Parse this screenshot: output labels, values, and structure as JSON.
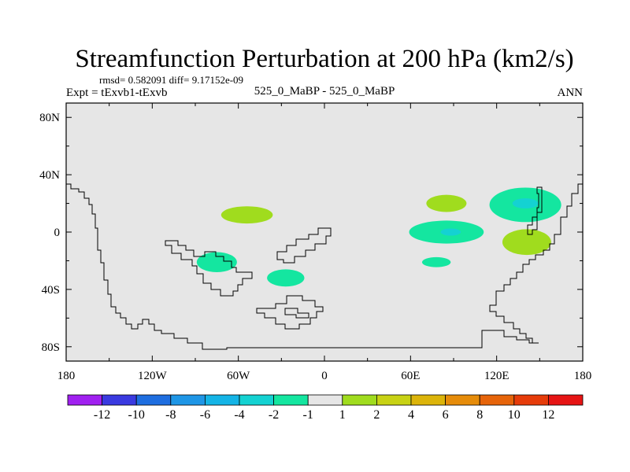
{
  "chart_data": {
    "type": "contour-map",
    "title": "Streamfunction Perturbation at 200 hPa (km2/s)",
    "stats": "rmsd= 0.582091 diff= 9.17152e-09",
    "experiment": "Expt = tExvb1-tExvb",
    "case": "525_0_MaBP - 525_0_MaBP",
    "season": "ANN",
    "x_ticks": [
      "180",
      "120W",
      "60W",
      "0",
      "60E",
      "120E",
      "180"
    ],
    "x_values": [
      -180,
      -120,
      -60,
      0,
      60,
      120,
      180
    ],
    "y_ticks": [
      "80N",
      "40N",
      "0",
      "40S",
      "80S"
    ],
    "y_values": [
      80,
      40,
      0,
      -40,
      -80
    ],
    "xlim": [
      -180,
      180
    ],
    "ylim": [
      -90,
      90
    ],
    "colorbar_labels": [
      "-12",
      "-10",
      "-8",
      "-6",
      "-4",
      "-2",
      "-1",
      "1",
      "2",
      "4",
      "6",
      "8",
      "10",
      "12"
    ],
    "colorbar_colors": [
      "#a020f0",
      "#3a3ae0",
      "#1e6ee0",
      "#1e96e6",
      "#14b4e6",
      "#14d2d2",
      "#14e6a0",
      "#e6e6e6",
      "#a0dc1e",
      "#c8d214",
      "#dcb40a",
      "#e68c0a",
      "#e6640a",
      "#e63c0a",
      "#e61414"
    ],
    "contour_features": [
      {
        "lon": -54,
        "lat": 12,
        "rlon": 18,
        "rlat": 6,
        "level": "1 to 2",
        "color": "#a0dc1e"
      },
      {
        "lon": -75,
        "lat": -21,
        "rlon": 14,
        "rlat": 7,
        "level": "-2 to -1",
        "color": "#14e6a0"
      },
      {
        "lon": -27,
        "lat": -32,
        "rlon": 13,
        "rlat": 6,
        "level": "-2 to -1",
        "color": "#14e6a0"
      },
      {
        "lon": 85,
        "lat": 20,
        "rlon": 14,
        "rlat": 6,
        "level": "1 to 2",
        "color": "#a0dc1e"
      },
      {
        "lon": 85,
        "lat": 0,
        "rlon": 26,
        "rlat": 8,
        "level": "-2 to -1",
        "color": "#14e6a0"
      },
      {
        "lon": 88,
        "lat": 0,
        "rlon": 7,
        "rlat": 2.5,
        "level": "-4 to -2",
        "color": "#14d2d2"
      },
      {
        "lon": 78,
        "lat": -21,
        "rlon": 10,
        "rlat": 3.5,
        "level": "-2 to -1",
        "color": "#14e6a0"
      },
      {
        "lon": 140,
        "lat": 19,
        "rlon": 25,
        "rlat": 12,
        "level": "-2 to -1",
        "color": "#14e6a0"
      },
      {
        "lon": 140,
        "lat": 20,
        "rlon": 9,
        "rlat": 3.5,
        "level": "-4 to -2",
        "color": "#14d2d2"
      },
      {
        "lon": 141,
        "lat": -7,
        "rlon": 17,
        "rlat": 9,
        "level": "1 to 2",
        "color": "#a0dc1e"
      }
    ]
  }
}
